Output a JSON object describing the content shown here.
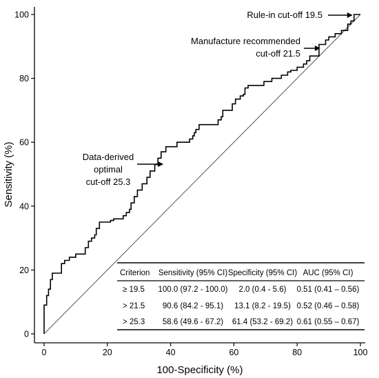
{
  "chart_data": {
    "type": "line",
    "xlabel": "100-Specificity (%)",
    "ylabel": "Sensitivity (%)",
    "xlim": [
      0,
      100
    ],
    "ylim": [
      0,
      100
    ],
    "xticks": [
      0,
      20,
      40,
      60,
      80,
      100
    ],
    "yticks": [
      0,
      20,
      40,
      60,
      80,
      100
    ],
    "grid": false,
    "series": [
      {
        "type": "step",
        "points": [
          [
            0,
            0
          ],
          [
            0,
            9
          ],
          [
            0.8,
            9
          ],
          [
            0.8,
            12
          ],
          [
            1.4,
            12
          ],
          [
            1.4,
            14
          ],
          [
            2,
            14
          ],
          [
            2,
            17
          ],
          [
            2.6,
            17
          ],
          [
            2.6,
            19
          ],
          [
            5.5,
            19
          ],
          [
            5.5,
            22
          ],
          [
            6.5,
            22
          ],
          [
            6.5,
            23
          ],
          [
            8,
            23
          ],
          [
            8,
            24
          ],
          [
            10,
            24
          ],
          [
            10,
            25
          ],
          [
            13,
            25
          ],
          [
            13,
            27
          ],
          [
            14,
            27
          ],
          [
            14,
            29
          ],
          [
            15,
            29
          ],
          [
            15,
            30
          ],
          [
            16,
            30
          ],
          [
            16,
            31
          ],
          [
            16.5,
            31
          ],
          [
            16.5,
            33
          ],
          [
            17.5,
            33
          ],
          [
            17.5,
            35
          ],
          [
            21,
            35
          ],
          [
            21,
            35.5
          ],
          [
            22,
            35.5
          ],
          [
            22,
            36
          ],
          [
            25,
            36
          ],
          [
            25,
            37
          ],
          [
            26,
            37
          ],
          [
            26,
            38
          ],
          [
            27,
            38
          ],
          [
            27,
            39
          ],
          [
            27.5,
            39
          ],
          [
            27.5,
            41
          ],
          [
            28.5,
            41
          ],
          [
            28.5,
            43
          ],
          [
            29.5,
            43
          ],
          [
            29.5,
            45
          ],
          [
            31,
            45
          ],
          [
            31,
            47
          ],
          [
            32.5,
            47
          ],
          [
            32.5,
            49
          ],
          [
            33.5,
            49
          ],
          [
            33.5,
            51
          ],
          [
            35,
            51
          ],
          [
            35,
            53
          ],
          [
            36,
            53
          ],
          [
            36,
            55
          ],
          [
            37,
            55
          ],
          [
            37,
            57
          ],
          [
            38.5,
            57
          ],
          [
            38.5,
            58.6
          ],
          [
            42,
            58.6
          ],
          [
            42,
            60
          ],
          [
            46,
            60
          ],
          [
            46,
            61
          ],
          [
            47,
            61
          ],
          [
            47,
            62
          ],
          [
            47.5,
            62
          ],
          [
            47.5,
            63
          ],
          [
            48,
            63
          ],
          [
            48,
            64
          ],
          [
            49,
            64
          ],
          [
            49,
            65.5
          ],
          [
            55,
            65.5
          ],
          [
            55,
            67
          ],
          [
            56,
            67
          ],
          [
            56,
            68
          ],
          [
            56.5,
            68
          ],
          [
            56.5,
            70
          ],
          [
            59.5,
            70
          ],
          [
            59.5,
            72
          ],
          [
            60.5,
            72
          ],
          [
            60.5,
            73.5
          ],
          [
            62,
            73.5
          ],
          [
            62,
            74.5
          ],
          [
            63,
            74.5
          ],
          [
            63,
            75
          ],
          [
            63.5,
            75
          ],
          [
            63.5,
            77
          ],
          [
            64.5,
            77
          ],
          [
            64.5,
            77.8
          ],
          [
            69.5,
            77.8
          ],
          [
            69.5,
            79
          ],
          [
            72,
            79
          ],
          [
            72,
            80
          ],
          [
            75,
            80
          ],
          [
            75,
            81
          ],
          [
            77,
            81
          ],
          [
            77,
            82
          ],
          [
            78,
            82
          ],
          [
            78,
            82.5
          ],
          [
            80,
            82.5
          ],
          [
            80,
            83.5
          ],
          [
            82,
            83.5
          ],
          [
            82,
            84.5
          ],
          [
            83,
            84.5
          ],
          [
            83,
            85.5
          ],
          [
            84,
            85.5
          ],
          [
            84,
            87
          ],
          [
            86.9,
            87
          ],
          [
            86.9,
            90.6
          ],
          [
            89,
            90.6
          ],
          [
            89,
            92
          ],
          [
            90,
            92
          ],
          [
            90,
            93
          ],
          [
            92,
            93
          ],
          [
            92,
            94
          ],
          [
            94,
            94
          ],
          [
            94,
            95
          ],
          [
            96,
            95
          ],
          [
            96,
            97
          ],
          [
            97,
            97
          ],
          [
            97,
            98
          ],
          [
            98,
            98
          ],
          [
            98,
            100
          ],
          [
            100,
            100
          ]
        ]
      },
      {
        "type": "reference",
        "points": [
          [
            0,
            0
          ],
          [
            100,
            100
          ]
        ]
      }
    ],
    "annotations": [
      {
        "text": "Rule-in cut-off 19.5",
        "point": [
          98,
          100
        ]
      },
      {
        "text": "Manufacture recommended",
        "text2": "cut-off 21.5",
        "point": [
          86.9,
          90.6
        ]
      },
      {
        "text": "Data-derived",
        "text2": "optimal",
        "text3": "cut-off 25.3",
        "point": [
          38.6,
          53.5
        ]
      }
    ],
    "table": {
      "headers": [
        "Criterion",
        "Sensitivity (95% CI)",
        "Specificity (95% CI)",
        "AUC (95% CI)"
      ],
      "rows": [
        [
          "≥  19.5",
          "100.0 (97.2 - 100.0)",
          "2.0 (0.4 - 5.6)",
          "0.51 (0.41 – 0.56)"
        ],
        [
          "> 21.5",
          "90.6 (84.2 - 95.1)",
          "13.1 (8.2 - 19.5)",
          "0.52 (0.46 – 0.58)"
        ],
        [
          "> 25.3",
          "58.6 (49.6 - 67.2)",
          "61.4 (53.2 - 69.2)",
          "0.61 (0.55 – 0.67)"
        ]
      ]
    }
  }
}
